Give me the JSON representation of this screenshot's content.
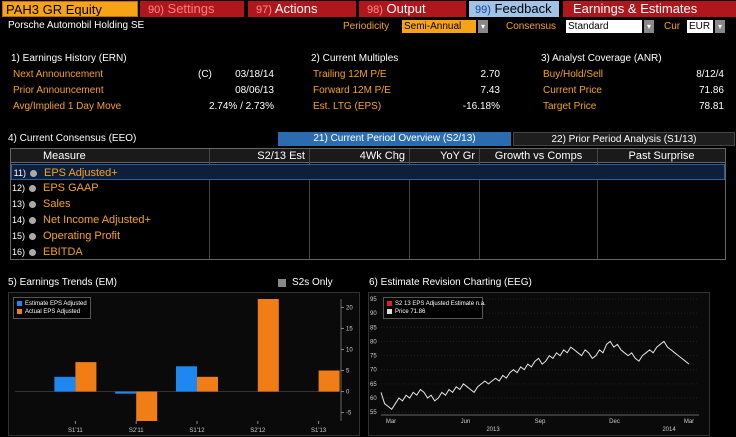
{
  "topbar": {
    "ticker": "PAH3 GR Equity",
    "settings_num": "90)",
    "settings": "Settings",
    "actions_num": "97)",
    "actions": "Actions",
    "output_num": "98)",
    "output": "Output",
    "feedback_num": "99)",
    "feedback": "Feedback",
    "earnings": "Earnings & Estimates"
  },
  "subbar": {
    "company": "Porsche Automobil Holding SE",
    "periodicity_label": "Periodicity",
    "periodicity_value": "Semi-Annual",
    "consensus_label": "Consensus",
    "consensus_value": "Standard",
    "cur_label": "Cur",
    "cur_value": "EUR"
  },
  "earnings_history": {
    "title": "1) Earnings History (ERN)",
    "rows": [
      {
        "label": "Next Announcement",
        "flag": "(C)",
        "value": "03/18/14"
      },
      {
        "label": "Prior Announcement",
        "flag": "",
        "value": "08/06/13"
      },
      {
        "label": "Avg/Implied 1 Day Move",
        "flag": "",
        "value": "2.74% / 2.73%"
      }
    ]
  },
  "current_multiples": {
    "title": "2) Current Multiples",
    "rows": [
      {
        "label": "Trailing 12M P/E",
        "value": "2.70"
      },
      {
        "label": "Forward 12M P/E",
        "value": "7.43"
      },
      {
        "label": "Est. LTG (EPS)",
        "value": "-16.18%"
      }
    ]
  },
  "analyst_coverage": {
    "title": "3) Analyst Coverage (ANR)",
    "rows": [
      {
        "label": "Buy/Hold/Sell",
        "value": "8/12/4"
      },
      {
        "label": "Current Price",
        "value": "71.86"
      },
      {
        "label": "Target Price",
        "value": "78.81"
      }
    ]
  },
  "consensus": {
    "title": "4) Current Consensus (EEO)",
    "tab_active": "21) Current Period Overview (S2/13)",
    "tab_inactive": "22) Prior Period Analysis (S1/13)",
    "columns": [
      "Measure",
      "S2/13 Est",
      "4Wk Chg",
      "YoY Gr",
      "Growth vs Comps",
      "Past Surprise"
    ],
    "rows": [
      {
        "idx": "11)",
        "name": "EPS Adjusted+"
      },
      {
        "idx": "12)",
        "name": "EPS GAAP"
      },
      {
        "idx": "13)",
        "name": "Sales"
      },
      {
        "idx": "14)",
        "name": "Net Income Adjusted+"
      },
      {
        "idx": "15)",
        "name": "Operating Profit"
      },
      {
        "idx": "16)",
        "name": "EBITDA"
      }
    ]
  },
  "trends": {
    "title": "5) Earnings Trends (EM)",
    "toggle_label": "S2s Only",
    "colors": {
      "estimate": "#1e88f0",
      "actual": "#f07d16"
    }
  },
  "revision": {
    "title": "6) Estimate Revision Charting (EEG)",
    "legend_estimate": "S2 13 EPS Adjusted Estimate",
    "legend_estimate_value": "n.a.",
    "legend_price": "Price",
    "legend_price_value": "71.86"
  },
  "chart_data": [
    {
      "type": "bar",
      "categories": [
        "S1'11",
        "S2'11",
        "S1'12",
        "S2'12",
        "S1'13"
      ],
      "series": [
        {
          "name": "Estimate EPS Adjusted",
          "values": [
            3.5,
            -0.5,
            6,
            null,
            null
          ]
        },
        {
          "name": "Actual EPS Adjusted",
          "values": [
            7,
            -7,
            3.5,
            22,
            5
          ]
        }
      ],
      "ylim": [
        -7,
        22
      ],
      "yticks": [
        -5,
        0,
        5,
        10,
        15,
        20
      ]
    },
    {
      "type": "line",
      "x_labels": [
        "Mar",
        "Jun",
        "Sep",
        "Dec",
        "Mar"
      ],
      "year_labels": [
        "2013",
        "2014"
      ],
      "ylim": [
        54,
        95
      ],
      "yticks": [
        55,
        60,
        65,
        70,
        75,
        80,
        85,
        90,
        95
      ],
      "series": [
        {
          "name": "Price",
          "values": [
            62,
            58,
            57,
            56,
            58,
            60,
            59,
            61,
            60,
            62,
            61,
            63,
            62,
            60,
            61,
            59,
            60,
            62,
            61,
            63,
            62,
            64,
            63,
            65,
            64,
            63,
            62,
            64,
            65,
            66,
            65,
            66,
            67,
            66,
            68,
            67,
            69,
            70,
            69,
            71,
            70,
            72,
            71,
            73,
            74,
            72,
            73,
            75,
            74,
            76,
            75,
            77,
            76,
            78,
            77,
            76,
            75,
            77,
            76,
            74,
            75,
            77,
            76,
            79,
            80,
            78,
            79,
            77,
            76,
            75,
            76,
            74,
            73,
            75,
            76,
            77,
            76,
            78,
            79,
            80,
            78,
            77,
            76,
            75,
            74,
            73,
            72
          ]
        }
      ]
    }
  ]
}
